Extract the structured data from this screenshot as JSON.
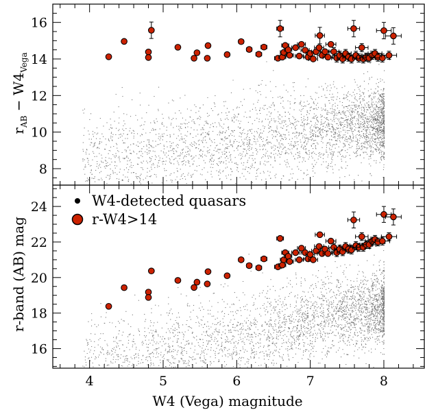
{
  "chart_data": [
    {
      "type": "scatter",
      "panel": "top",
      "xlim": [
        3.5,
        8.55
      ],
      "ylim": [
        7.1,
        17.0
      ],
      "x_ticks": [
        4,
        5,
        6,
        7,
        8
      ],
      "y_ticks": [
        8,
        10,
        12,
        14,
        16
      ],
      "y_tick_labels": [
        "8",
        "10",
        "12",
        "14",
        "16"
      ],
      "ylabel": {
        "main": "r",
        "sub1": "AB",
        "mid": " − W4",
        "sub2": "Vega"
      },
      "background_cloud": {
        "name": "W4-detected quasars",
        "color": "#000000",
        "x_range": [
          3.9,
          8.0
        ],
        "y_center": 10.5
      },
      "series": [
        {
          "name": "r−W4>14",
          "color": "#cc2200",
          "points": [
            [
              4.26,
              14.12
            ],
            [
              4.47,
              14.96
            ],
            [
              4.8,
              14.38
            ],
            [
              4.8,
              14.08
            ],
            [
              4.84,
              15.57
            ],
            [
              5.2,
              14.64
            ],
            [
              5.42,
              14.04
            ],
            [
              5.46,
              14.34
            ],
            [
              5.6,
              14.04
            ],
            [
              5.61,
              14.73
            ],
            [
              5.87,
              14.24
            ],
            [
              6.06,
              14.95
            ],
            [
              6.17,
              14.52
            ],
            [
              6.3,
              14.26
            ],
            [
              6.37,
              14.65
            ],
            [
              6.56,
              14.04
            ],
            [
              6.59,
              15.66
            ],
            [
              6.62,
              14.1
            ],
            [
              6.64,
              14.36
            ],
            [
              6.66,
              14.74
            ],
            [
              6.7,
              14.5
            ],
            [
              6.72,
              14.2
            ],
            [
              6.8,
              14.62
            ],
            [
              6.85,
              14.16
            ],
            [
              6.88,
              14.8
            ],
            [
              6.93,
              14.48
            ],
            [
              6.97,
              14.1
            ],
            [
              7.0,
              14.3
            ],
            [
              7.04,
              14.0
            ],
            [
              7.08,
              14.4
            ],
            [
              7.12,
              14.62
            ],
            [
              7.13,
              15.28
            ],
            [
              7.16,
              14.2
            ],
            [
              7.2,
              14.4
            ],
            [
              7.24,
              14.1
            ],
            [
              7.28,
              14.8
            ],
            [
              7.32,
              14.4
            ],
            [
              7.36,
              14.05
            ],
            [
              7.4,
              14.2
            ],
            [
              7.44,
              14.0
            ],
            [
              7.48,
              14.3
            ],
            [
              7.52,
              14.1
            ],
            [
              7.56,
              14.0
            ],
            [
              7.59,
              15.66
            ],
            [
              7.62,
              14.2
            ],
            [
              7.66,
              14.05
            ],
            [
              7.7,
              14.62
            ],
            [
              7.72,
              14.0
            ],
            [
              7.76,
              14.1
            ],
            [
              7.8,
              14.05
            ],
            [
              7.84,
              14.2
            ],
            [
              7.88,
              14.3
            ],
            [
              7.92,
              14.1
            ],
            [
              7.98,
              14.05
            ],
            [
              8.0,
              15.55
            ],
            [
              8.07,
              14.2
            ],
            [
              8.13,
              15.26
            ]
          ]
        }
      ]
    },
    {
      "type": "scatter",
      "panel": "bottom",
      "xlim": [
        3.5,
        8.55
      ],
      "ylim": [
        14.9,
        25.2
      ],
      "x_ticks": [
        4,
        5,
        6,
        7,
        8
      ],
      "x_tick_labels": [
        "4",
        "5",
        "6",
        "7",
        "8"
      ],
      "y_ticks": [
        16,
        18,
        20,
        22,
        24
      ],
      "y_tick_labels": [
        "16",
        "18",
        "20",
        "22",
        "24"
      ],
      "xlabel": "W4 (Vega) magnitude",
      "ylabel": "r-band (AB) mag",
      "legend": {
        "position": "top-left",
        "entries": [
          {
            "label": "W4-detected quasars",
            "marker": "small-black-dot"
          },
          {
            "label": "r-W4>14",
            "marker": "red-circle"
          }
        ]
      },
      "background_cloud": {
        "name": "W4-detected quasars",
        "color": "#000000",
        "x_range": [
          3.9,
          8.0
        ],
        "y_center": 18.4
      },
      "series": [
        {
          "name": "r-W4>14",
          "color": "#cc2200",
          "points": [
            [
              4.26,
              18.38
            ],
            [
              4.47,
              19.43
            ],
            [
              4.8,
              19.18
            ],
            [
              4.8,
              18.88
            ],
            [
              4.84,
              20.37
            ],
            [
              5.2,
              19.84
            ],
            [
              5.42,
              19.44
            ],
            [
              5.46,
              19.74
            ],
            [
              5.6,
              19.64
            ],
            [
              5.61,
              20.33
            ],
            [
              5.87,
              20.1
            ],
            [
              6.06,
              21.0
            ],
            [
              6.17,
              20.67
            ],
            [
              6.3,
              20.55
            ],
            [
              6.37,
              21.05
            ],
            [
              6.56,
              20.6
            ],
            [
              6.59,
              22.2
            ],
            [
              6.62,
              20.7
            ],
            [
              6.64,
              21.0
            ],
            [
              6.66,
              21.4
            ],
            [
              6.7,
              21.2
            ],
            [
              6.72,
              20.9
            ],
            [
              6.8,
              21.4
            ],
            [
              6.85,
              21.0
            ],
            [
              6.88,
              21.65
            ],
            [
              6.93,
              21.4
            ],
            [
              6.97,
              21.05
            ],
            [
              7.0,
              21.3
            ],
            [
              7.04,
              21.0
            ],
            [
              7.08,
              21.5
            ],
            [
              7.12,
              21.75
            ],
            [
              7.13,
              22.41
            ],
            [
              7.16,
              21.35
            ],
            [
              7.2,
              21.6
            ],
            [
              7.24,
              21.35
            ],
            [
              7.28,
              22.05
            ],
            [
              7.32,
              21.7
            ],
            [
              7.36,
              21.4
            ],
            [
              7.4,
              21.6
            ],
            [
              7.44,
              21.45
            ],
            [
              7.48,
              21.75
            ],
            [
              7.52,
              21.6
            ],
            [
              7.56,
              21.55
            ],
            [
              7.59,
              23.24
            ],
            [
              7.62,
              21.8
            ],
            [
              7.66,
              21.7
            ],
            [
              7.7,
              22.3
            ],
            [
              7.72,
              21.7
            ],
            [
              7.76,
              21.85
            ],
            [
              7.8,
              21.85
            ],
            [
              7.84,
              22.05
            ],
            [
              7.88,
              22.15
            ],
            [
              7.92,
              22.0
            ],
            [
              7.98,
              22.05
            ],
            [
              8.0,
              23.55
            ],
            [
              8.07,
              22.3
            ],
            [
              8.13,
              23.41
            ]
          ]
        }
      ]
    }
  ]
}
